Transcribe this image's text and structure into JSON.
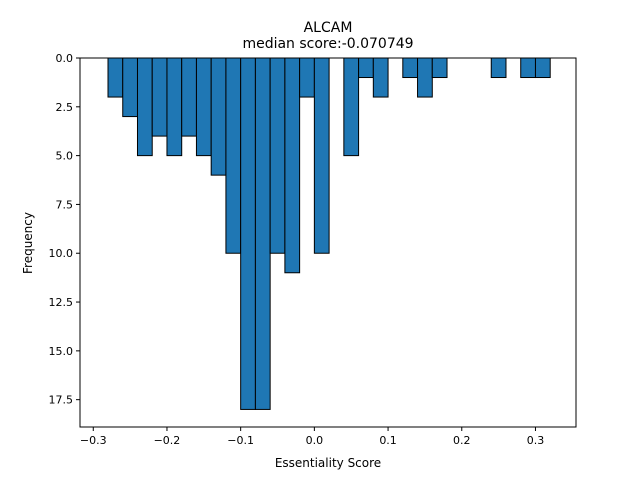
{
  "chart_data": {
    "type": "bar",
    "title": "ALCAM",
    "subtitle": "median score:-0.070749",
    "xlabel": "Essentiality Score",
    "ylabel": "Frequency",
    "y_inverted": true,
    "xlim": [
      -0.318,
      0.355
    ],
    "ylim": [
      0,
      18.9
    ],
    "x_ticks": [
      -0.3,
      -0.2,
      -0.1,
      0.0,
      0.1,
      0.2,
      0.3
    ],
    "x_tick_labels": [
      "−0.3",
      "−0.2",
      "−0.1",
      "0.0",
      "0.1",
      "0.2",
      "0.3"
    ],
    "y_ticks": [
      0,
      2.5,
      5,
      7.5,
      10,
      12.5,
      15,
      17.5
    ],
    "y_tick_labels": [
      "0.0",
      "2.5",
      "5.0",
      "7.5",
      "10.0",
      "12.5",
      "15.0",
      "17.5"
    ],
    "bin_width": 0.02,
    "bin_starts": [
      -0.28,
      -0.26,
      -0.24,
      -0.22,
      -0.2,
      -0.18,
      -0.16,
      -0.14,
      -0.12,
      -0.1,
      -0.08,
      -0.06,
      -0.04,
      -0.02,
      0.0,
      0.02,
      0.04,
      0.06,
      0.08,
      0.1,
      0.12,
      0.14,
      0.16,
      0.18,
      0.2,
      0.22,
      0.24,
      0.26,
      0.28,
      0.3
    ],
    "counts": [
      2,
      3,
      5,
      4,
      5,
      4,
      5,
      6,
      10,
      18,
      18,
      10,
      11,
      2,
      10,
      0,
      5,
      1,
      2,
      0,
      1,
      2,
      1,
      0,
      0,
      0,
      1,
      0,
      1,
      1
    ],
    "colors": {
      "bar_fill": "#1f77b4",
      "bar_edge": "#000000"
    },
    "grid": false
  }
}
